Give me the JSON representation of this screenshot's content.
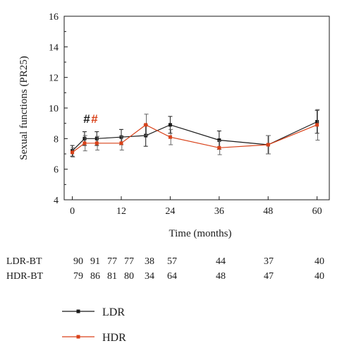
{
  "chart_data": {
    "type": "line",
    "xlabel": "Time (months)",
    "ylabel": "Sexual functions (PR25)",
    "xlim": [
      -2,
      63
    ],
    "ylim": [
      4,
      16
    ],
    "x_ticks": [
      "0",
      "12",
      "24",
      "36",
      "48",
      "60"
    ],
    "y_ticks": [
      "4",
      "6",
      "8",
      "10",
      "12",
      "14",
      "16"
    ],
    "grid": false,
    "legend_placement": "bottom-left",
    "series": [
      {
        "name": "LDR",
        "color": "#1a1a1a",
        "x": [
          0,
          3,
          6,
          12,
          18,
          24,
          36,
          48,
          60
        ],
        "y": [
          7.2,
          8.0,
          8.0,
          8.1,
          8.2,
          8.9,
          7.9,
          7.6,
          9.1
        ],
        "err": [
          0.35,
          0.45,
          0.45,
          0.5,
          0.7,
          0.55,
          0.6,
          0.6,
          0.75
        ]
      },
      {
        "name": "HDR",
        "color": "#d9421a",
        "x": [
          0,
          3,
          6,
          12,
          18,
          24,
          36,
          48,
          60
        ],
        "y": [
          7.1,
          7.7,
          7.7,
          7.7,
          8.9,
          8.1,
          7.4,
          7.6,
          8.9
        ],
        "err": [
          0.3,
          0.5,
          0.45,
          0.45,
          0.7,
          0.5,
          0.45,
          0.6,
          1.0
        ]
      }
    ],
    "annotations": [
      {
        "text": "#",
        "x": 3,
        "y": 9.3,
        "color": "#1a1a1a"
      },
      {
        "text": "#",
        "x": 3,
        "y": 9.3,
        "color": "#d9421a"
      }
    ],
    "n_at_risk": {
      "rows": [
        {
          "label": "LDR-BT",
          "values": [
            "90",
            "91",
            "77",
            "77",
            "38",
            "57",
            "44",
            "37",
            "40"
          ]
        },
        {
          "label": "HDR-BT",
          "values": [
            "79",
            "86",
            "81",
            "80",
            "34",
            "64",
            "48",
            "47",
            "40"
          ]
        }
      ]
    }
  }
}
